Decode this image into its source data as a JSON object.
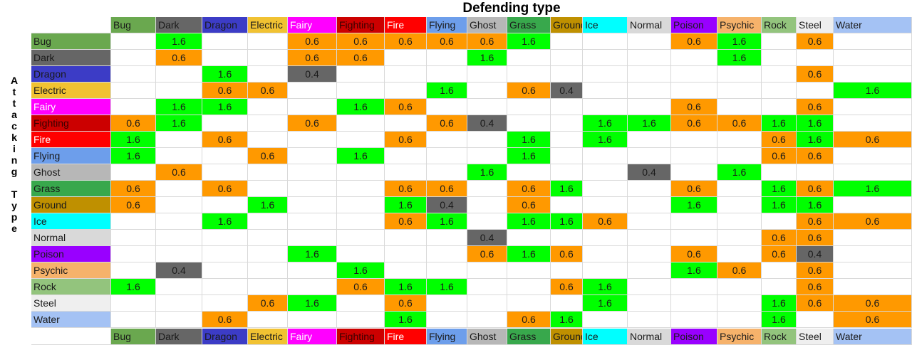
{
  "title": "Defending type",
  "side_label": "Attacking Type",
  "types": [
    {
      "label": "Bug",
      "color": "#6aa84f",
      "text": "#1a1a1a"
    },
    {
      "label": "Dark",
      "color": "#666666",
      "text": "#1a1a1a"
    },
    {
      "label": "Dragon",
      "color": "#3c3cc6",
      "text": "#1a1a1a"
    },
    {
      "label": "Electric",
      "color": "#f1c232",
      "text": "#1a1a1a"
    },
    {
      "label": "Fairy",
      "color": "#ff00ff",
      "text": "#ffffff"
    },
    {
      "label": "Fighting",
      "color": "#cc0000",
      "text": "#3a0000"
    },
    {
      "label": "Fire",
      "color": "#ff0000",
      "text": "#ffffff"
    },
    {
      "label": "Flying",
      "color": "#6d9eeb",
      "text": "#1a1a1a"
    },
    {
      "label": "Ghost",
      "color": "#b7b7b7",
      "text": "#1a1a1a"
    },
    {
      "label": "Grass",
      "color": "#38a84c",
      "text": "#1a1a1a"
    },
    {
      "label": "Ground",
      "color": "#bf9000",
      "text": "#1a1a1a"
    },
    {
      "label": "Ice",
      "color": "#00ffff",
      "text": "#1a1a1a"
    },
    {
      "label": "Normal",
      "color": "#d9d9d9",
      "text": "#1a1a1a"
    },
    {
      "label": "Poison",
      "color": "#9900ff",
      "text": "#1a1a1a"
    },
    {
      "label": "Psychic",
      "color": "#f6b26b",
      "text": "#1a1a1a"
    },
    {
      "label": "Rock",
      "color": "#93c47d",
      "text": "#1a1a1a"
    },
    {
      "label": "Steel",
      "color": "#efefef",
      "text": "#1a1a1a"
    },
    {
      "label": "Water",
      "color": "#a4c2f4",
      "text": "#1a1a1a"
    }
  ],
  "value_colors": {
    "1.6": "#00ff00",
    "0.6": "#ff9900",
    "0.4": "#666666"
  },
  "matrix": [
    [
      "",
      "1.6",
      "",
      "",
      "0.6",
      "0.6",
      "0.6",
      "0.6",
      "0.6",
      "1.6",
      "",
      "",
      "",
      "0.6",
      "1.6",
      "",
      "0.6",
      ""
    ],
    [
      "",
      "0.6",
      "",
      "",
      "0.6",
      "0.6",
      "",
      "",
      "1.6",
      "",
      "",
      "",
      "",
      "",
      "1.6",
      "",
      "",
      ""
    ],
    [
      "",
      "",
      "1.6",
      "",
      "0.4",
      "",
      "",
      "",
      "",
      "",
      "",
      "",
      "",
      "",
      "",
      "",
      "0.6",
      ""
    ],
    [
      "",
      "",
      "0.6",
      "0.6",
      "",
      "",
      "",
      "1.6",
      "",
      "0.6",
      "0.4",
      "",
      "",
      "",
      "",
      "",
      "",
      "1.6"
    ],
    [
      "",
      "1.6",
      "1.6",
      "",
      "",
      "1.6",
      "0.6",
      "",
      "",
      "",
      "",
      "",
      "",
      "0.6",
      "",
      "",
      "0.6",
      ""
    ],
    [
      "0.6",
      "1.6",
      "",
      "",
      "0.6",
      "",
      "",
      "0.6",
      "0.4",
      "",
      "",
      "1.6",
      "1.6",
      "0.6",
      "0.6",
      "1.6",
      "1.6",
      ""
    ],
    [
      "1.6",
      "",
      "0.6",
      "",
      "",
      "",
      "0.6",
      "",
      "",
      "1.6",
      "",
      "1.6",
      "",
      "",
      "",
      "0.6",
      "1.6",
      "0.6"
    ],
    [
      "1.6",
      "",
      "",
      "0.6",
      "",
      "1.6",
      "",
      "",
      "",
      "1.6",
      "",
      "",
      "",
      "",
      "",
      "0.6",
      "0.6",
      ""
    ],
    [
      "",
      "0.6",
      "",
      "",
      "",
      "",
      "",
      "",
      "1.6",
      "",
      "",
      "",
      "0.4",
      "",
      "1.6",
      "",
      "",
      ""
    ],
    [
      "0.6",
      "",
      "0.6",
      "",
      "",
      "",
      "0.6",
      "0.6",
      "",
      "0.6",
      "1.6",
      "",
      "",
      "0.6",
      "",
      "1.6",
      "0.6",
      "1.6"
    ],
    [
      "0.6",
      "",
      "",
      "1.6",
      "",
      "",
      "1.6",
      "0.4",
      "",
      "0.6",
      "",
      "",
      "",
      "1.6",
      "",
      "1.6",
      "1.6",
      ""
    ],
    [
      "",
      "",
      "1.6",
      "",
      "",
      "",
      "0.6",
      "1.6",
      "",
      "1.6",
      "1.6",
      "0.6",
      "",
      "",
      "",
      "",
      "0.6",
      "0.6"
    ],
    [
      "",
      "",
      "",
      "",
      "",
      "",
      "",
      "",
      "0.4",
      "",
      "",
      "",
      "",
      "",
      "",
      "0.6",
      "0.6",
      ""
    ],
    [
      "",
      "",
      "",
      "",
      "1.6",
      "",
      "",
      "",
      "0.6",
      "1.6",
      "0.6",
      "",
      "",
      "0.6",
      "",
      "0.6",
      "0.4",
      ""
    ],
    [
      "",
      "0.4",
      "",
      "",
      "",
      "1.6",
      "",
      "",
      "",
      "",
      "",
      "",
      "",
      "1.6",
      "0.6",
      "",
      "0.6",
      ""
    ],
    [
      "1.6",
      "",
      "",
      "",
      "",
      "0.6",
      "1.6",
      "1.6",
      "",
      "",
      "0.6",
      "1.6",
      "",
      "",
      "",
      "",
      "0.6",
      ""
    ],
    [
      "",
      "",
      "",
      "0.6",
      "1.6",
      "",
      "0.6",
      "",
      "",
      "",
      "",
      "1.6",
      "",
      "",
      "",
      "1.6",
      "0.6",
      "0.6"
    ],
    [
      "",
      "",
      "0.6",
      "",
      "",
      "",
      "1.6",
      "",
      "",
      "0.6",
      "1.6",
      "",
      "",
      "",
      "",
      "1.6",
      "",
      "0.6"
    ]
  ]
}
